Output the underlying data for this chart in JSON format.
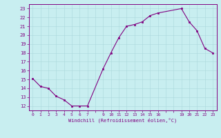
{
  "x": [
    0,
    1,
    2,
    3,
    4,
    5,
    6,
    7,
    9,
    10,
    11,
    12,
    13,
    14,
    15,
    16,
    19,
    20,
    21,
    22,
    23
  ],
  "y": [
    15.1,
    14.2,
    14.0,
    13.1,
    12.7,
    12.0,
    12.0,
    12.0,
    16.2,
    18.0,
    19.7,
    21.0,
    21.2,
    21.5,
    22.2,
    22.5,
    23.0,
    21.5,
    20.5,
    18.5,
    18.0
  ],
  "line_color": "#800080",
  "marker_color": "#800080",
  "bg_color": "#c8eef0",
  "grid_color": "#aad8dc",
  "xlabel": "Windchill (Refroidissement éolien,°C)",
  "xlim": [
    -0.5,
    23.5
  ],
  "ylim": [
    11.5,
    23.5
  ],
  "yticks": [
    12,
    13,
    14,
    15,
    16,
    17,
    18,
    19,
    20,
    21,
    22,
    23
  ],
  "xtick_positions": [
    0,
    1,
    2,
    3,
    4,
    5,
    6,
    7,
    9,
    10,
    11,
    12,
    13,
    14,
    15,
    16,
    19,
    20,
    21,
    22,
    23
  ],
  "xtick_labels": [
    "0",
    "1",
    "2",
    "3",
    "4",
    "5",
    "6",
    "7",
    "9",
    "10",
    "11",
    "12",
    "13",
    "14",
    "15",
    "16",
    "19",
    "20",
    "21",
    "22",
    "23"
  ],
  "tick_color": "#800080",
  "axis_color": "#800080",
  "xlabel_fontsize": 5.0,
  "xtick_fontsize": 4.5,
  "ytick_fontsize": 5.0
}
